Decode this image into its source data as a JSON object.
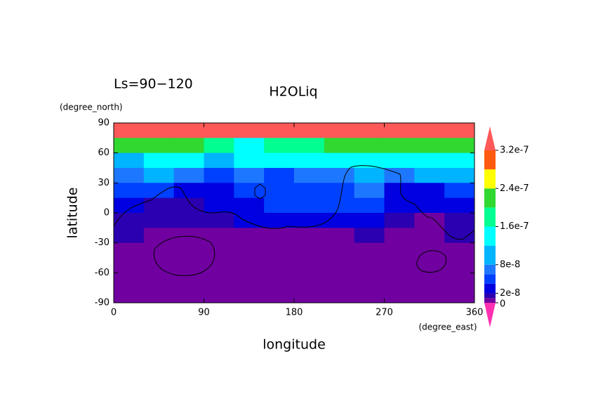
{
  "chart_data": {
    "type": "contour",
    "title": "H2OLiq",
    "subtitle": "Ls=90−120",
    "x_label": "longitude",
    "x_unit": "(degree_east)",
    "y_label": "latitude",
    "y_unit": "(degree_north)",
    "x": [
      15,
      45,
      75,
      105,
      135,
      165,
      195,
      225,
      255,
      285,
      315,
      345
    ],
    "y": [
      82.5,
      67.5,
      52.5,
      37.5,
      22.5,
      7.5,
      -7.5,
      -22.5,
      -37.5,
      -52.5,
      -67.5,
      -82.5
    ],
    "z": [
      [
        3.5e-07,
        3.5e-07,
        3.5e-07,
        3.5e-07,
        3.5e-07,
        3.5e-07,
        3.5e-07,
        3.5e-07,
        3.5e-07,
        3.5e-07,
        3.5e-07,
        3.5e-07
      ],
      [
        2.2e-07,
        2.1e-07,
        2e-07,
        1.7e-07,
        1.5e-07,
        1.6e-07,
        1.8e-07,
        2.1e-07,
        2.2e-07,
        2.2e-07,
        2.3e-07,
        2.3e-07
      ],
      [
        1e-07,
        1.3e-07,
        1.3e-07,
        1.1e-07,
        1.3e-07,
        1.4e-07,
        1.4e-07,
        1.3e-07,
        1.3e-07,
        1.4e-07,
        1.4e-07,
        1.2e-07
      ],
      [
        7e-08,
        9e-08,
        6e-08,
        5e-08,
        7e-08,
        5e-08,
        7e-08,
        7e-08,
        9e-08,
        7e-08,
        9e-08,
        9e-08
      ],
      [
        5e-08,
        5e-08,
        3e-08,
        3e-08,
        5e-08,
        5e-08,
        5e-08,
        5e-08,
        7e-08,
        3e-08,
        3e-08,
        5e-08
      ],
      [
        3e-08,
        1.5e-08,
        1.5e-08,
        3e-08,
        3e-08,
        5e-08,
        5e-08,
        5e-08,
        5e-08,
        3e-08,
        3e-08,
        3e-08
      ],
      [
        1.5e-08,
        1.5e-08,
        1.5e-08,
        1.5e-08,
        3e-08,
        3e-08,
        3e-08,
        3e-08,
        3e-08,
        1.5e-08,
        5e-09,
        1.5e-08
      ],
      [
        1.5e-08,
        5e-09,
        5e-09,
        5e-09,
        5e-09,
        5e-09,
        5e-09,
        5e-09,
        1.5e-08,
        5e-09,
        5e-09,
        1.5e-08
      ],
      [
        5e-09,
        5e-09,
        5e-09,
        5e-09,
        5e-09,
        5e-09,
        5e-09,
        5e-09,
        5e-09,
        5e-09,
        5e-09,
        5e-09
      ],
      [
        5e-09,
        5e-09,
        5e-09,
        5e-09,
        5e-09,
        5e-09,
        5e-09,
        5e-09,
        5e-09,
        5e-09,
        5e-09,
        5e-09
      ],
      [
        5e-09,
        5e-09,
        5e-09,
        5e-09,
        5e-09,
        5e-09,
        5e-09,
        5e-09,
        5e-09,
        5e-09,
        5e-09,
        5e-09
      ],
      [
        5e-09,
        5e-09,
        5e-09,
        5e-09,
        5e-09,
        5e-09,
        5e-09,
        5e-09,
        5e-09,
        5e-09,
        5e-09,
        5e-09
      ]
    ],
    "xlim": [
      0,
      360
    ],
    "ylim": [
      -90,
      90
    ],
    "xticks": [
      0,
      90,
      180,
      270,
      360
    ],
    "yticks": [
      -90,
      -60,
      -30,
      0,
      30,
      60,
      90
    ],
    "levels": [
      0,
      1e-08,
      2e-08,
      4e-08,
      6e-08,
      8e-08,
      1.2e-07,
      1.6e-07,
      2e-07,
      2.4e-07,
      2.8e-07,
      3.2e-07
    ],
    "colors": [
      "#7000a0",
      "#2a00b0",
      "#0000e0",
      "#0040ff",
      "#1e78ff",
      "#00b4ff",
      "#00ffff",
      "#00ff90",
      "#30d830",
      "#ffff00",
      "#ff5a10"
    ],
    "under_color": "#ff30b0",
    "over_color": "#ff5858",
    "clim": [
      0,
      3.2e-07
    ],
    "cticks": [
      0,
      2e-08,
      8e-08,
      1.6e-07,
      2.4e-07,
      3.2e-07
    ]
  }
}
